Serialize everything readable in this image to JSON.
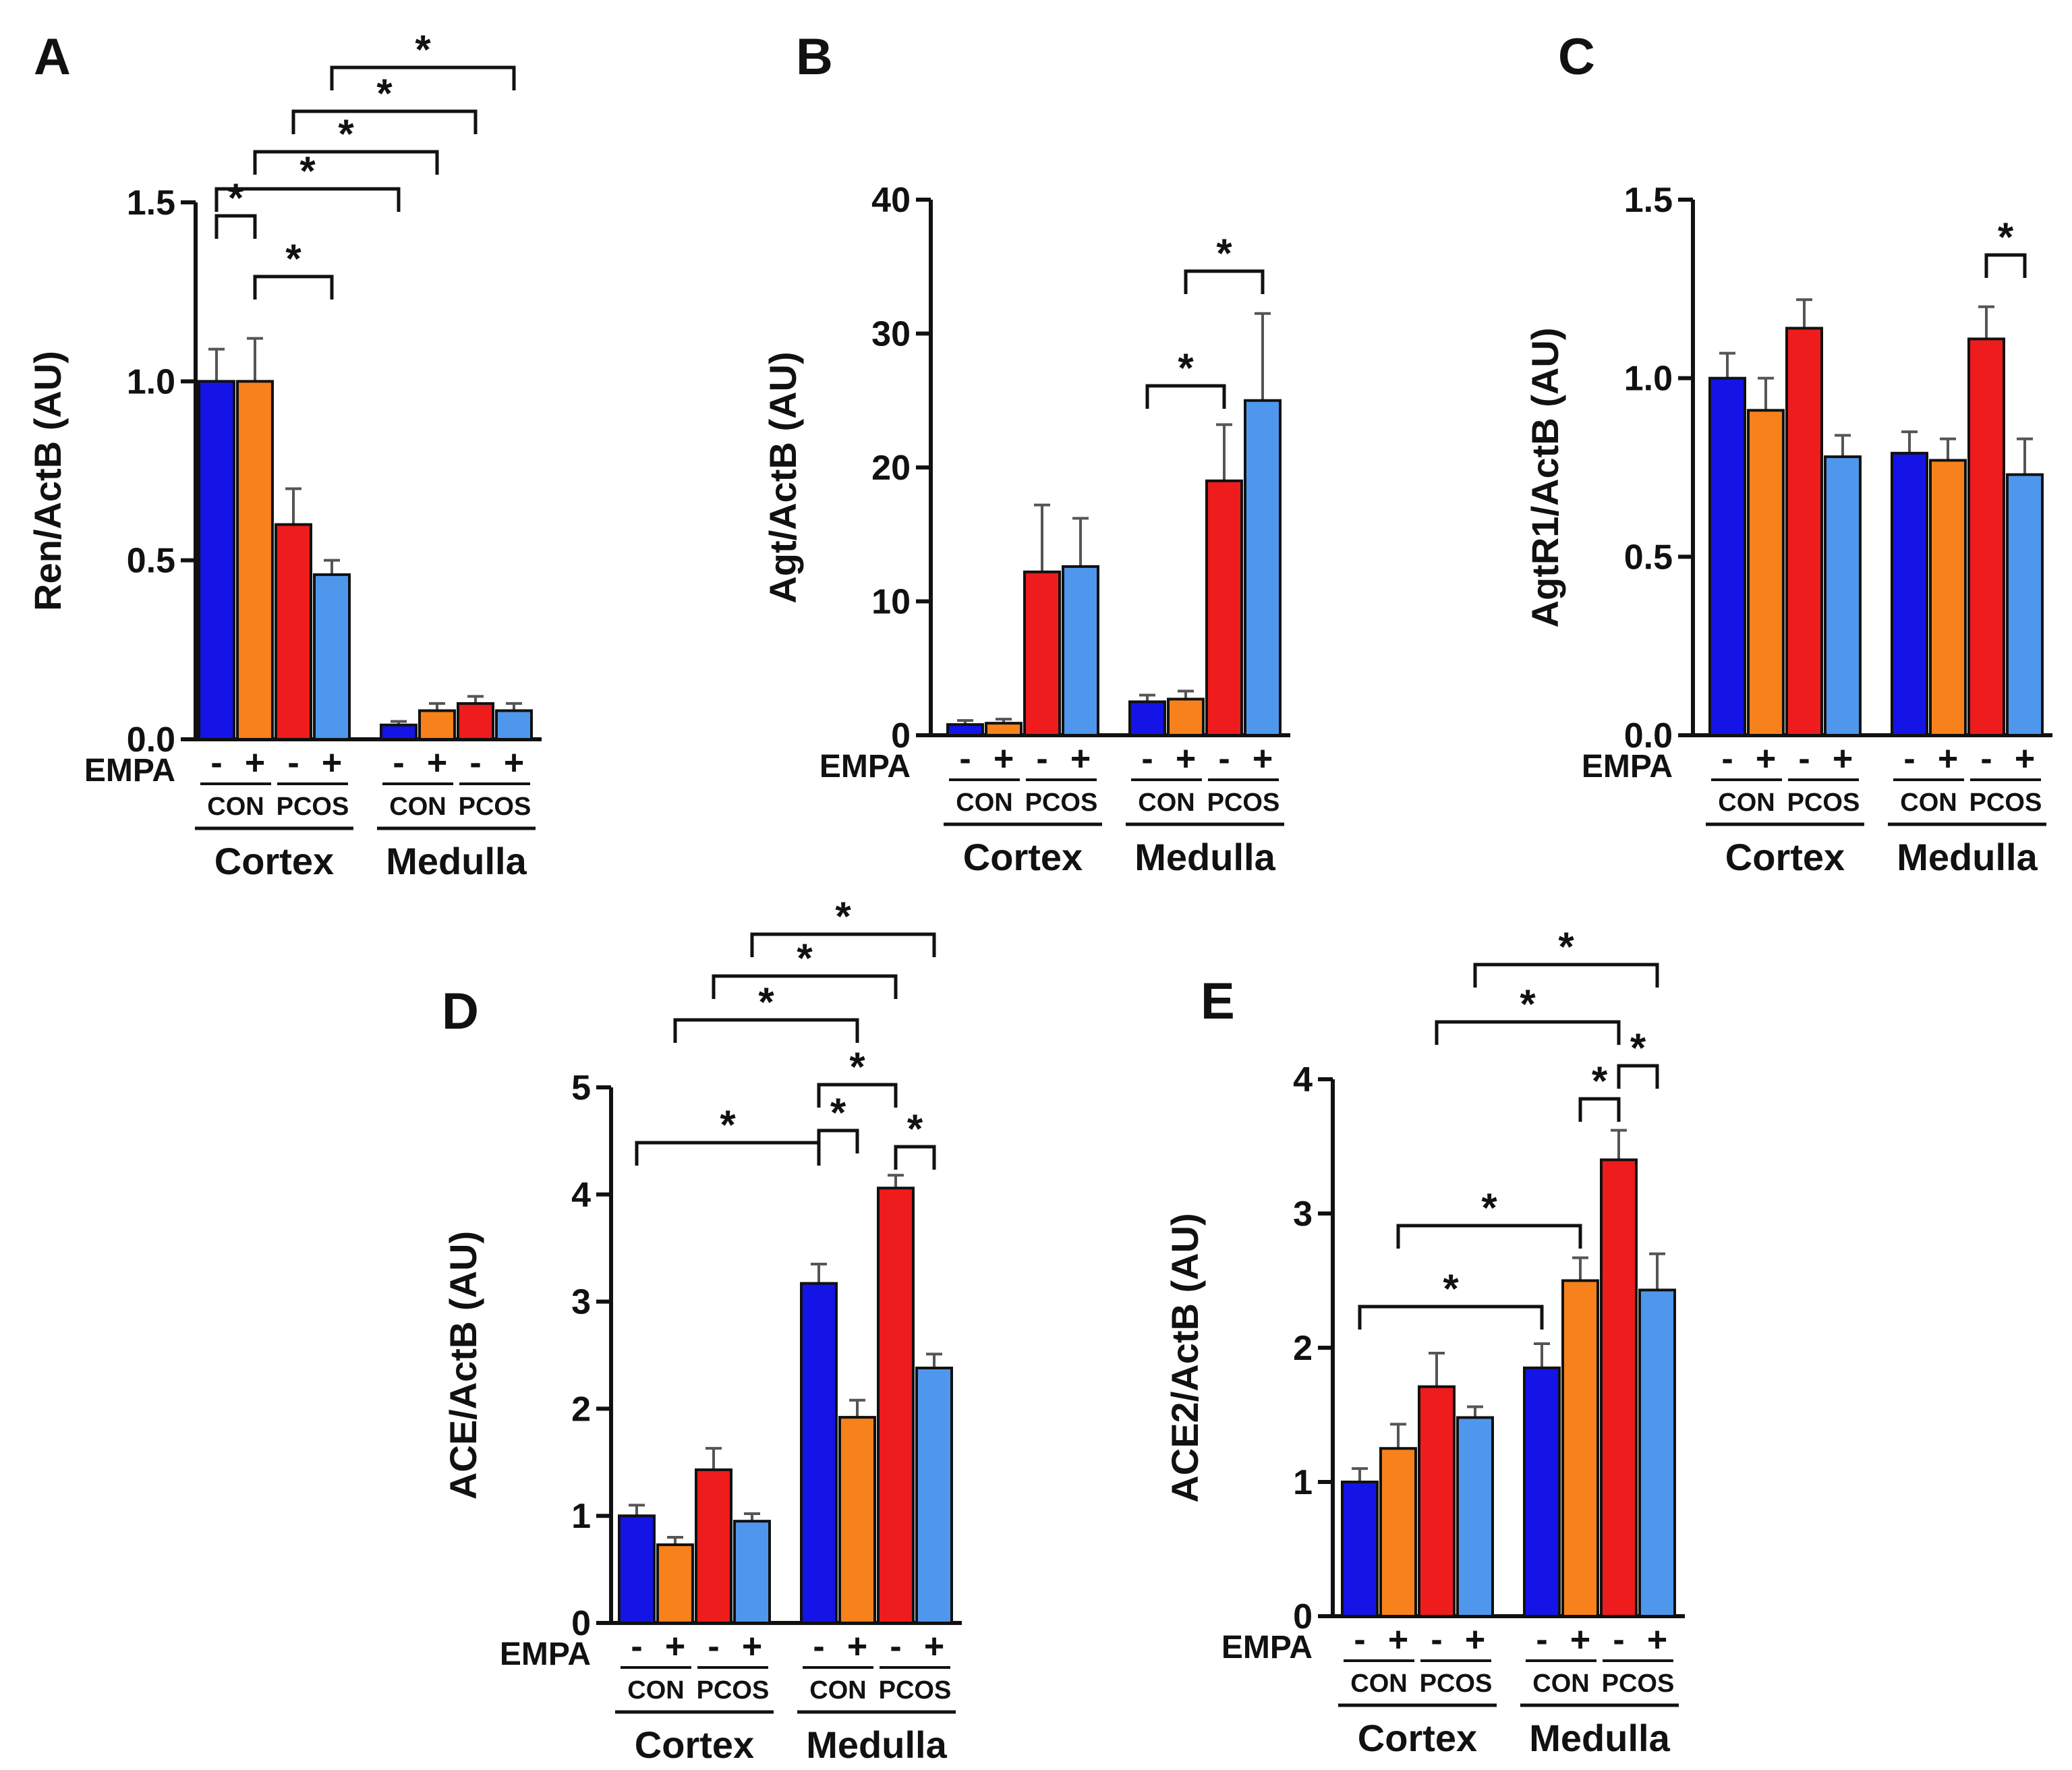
{
  "figure": {
    "panels": [
      "A",
      "B",
      "C",
      "D",
      "E"
    ],
    "colors": {
      "con_minus": "#1414e6",
      "con_plus": "#f7811b",
      "pcos_minus": "#ee1c1c",
      "pcos_plus": "#4f97ec",
      "axis": "#111111"
    },
    "group_labels": {
      "treatment": "EMPA",
      "minus": "-",
      "plus": "+",
      "con": "CON",
      "pcos": "PCOS",
      "cortex": "Cortex",
      "medulla": "Medulla"
    },
    "significance_symbol": "*"
  },
  "chart_data": [
    {
      "type": "bar",
      "panel_label": "A",
      "ylabel": "Ren/ActB (AU)",
      "ylim": [
        0,
        1.5
      ],
      "yticks": [
        "0.0",
        "0.5",
        "1.0",
        "1.5"
      ],
      "regions": [
        "Cortex",
        "Medulla"
      ],
      "groups": [
        "CON",
        "PCOS"
      ],
      "treatment": [
        "-",
        "+"
      ],
      "bar_order": [
        "CON -",
        "CON +",
        "PCOS -",
        "PCOS +"
      ],
      "values": {
        "Cortex": [
          1.0,
          1.0,
          0.6,
          0.46
        ],
        "Medulla": [
          0.04,
          0.08,
          0.1,
          0.08
        ]
      },
      "errors": {
        "Cortex": [
          0.09,
          0.12,
          0.1,
          0.04
        ],
        "Medulla": [
          0.01,
          0.02,
          0.02,
          0.02
        ]
      },
      "significance": [
        {
          "from": "Cortex CON -",
          "to": "Cortex CON +",
          "label": "*"
        },
        {
          "from": "Cortex CON +",
          "to": "Cortex PCOS +",
          "label": "*"
        },
        {
          "from": "Cortex CON -",
          "to": "Medulla CON -",
          "label": "*"
        },
        {
          "from": "Cortex CON +",
          "to": "Medulla CON +",
          "label": "*"
        },
        {
          "from": "Cortex PCOS -",
          "to": "Medulla PCOS -",
          "label": "*"
        },
        {
          "from": "Cortex PCOS +",
          "to": "Medulla PCOS +",
          "label": "*"
        }
      ]
    },
    {
      "type": "bar",
      "panel_label": "B",
      "ylabel": "Agt/ActB (AU)",
      "ylim": [
        0,
        40
      ],
      "yticks": [
        "0",
        "10",
        "20",
        "30",
        "40"
      ],
      "regions": [
        "Cortex",
        "Medulla"
      ],
      "groups": [
        "CON",
        "PCOS"
      ],
      "treatment": [
        "-",
        "+"
      ],
      "bar_order": [
        "CON -",
        "CON +",
        "PCOS -",
        "PCOS +"
      ],
      "values": {
        "Cortex": [
          0.8,
          0.9,
          12.2,
          12.6
        ],
        "Medulla": [
          2.5,
          2.7,
          19.0,
          25.0
        ]
      },
      "errors": {
        "Cortex": [
          0.3,
          0.3,
          5.0,
          3.6
        ],
        "Medulla": [
          0.5,
          0.6,
          4.2,
          6.5
        ]
      },
      "significance": [
        {
          "from": "Medulla CON -",
          "to": "Medulla PCOS -",
          "label": "*"
        },
        {
          "from": "Medulla CON +",
          "to": "Medulla PCOS +",
          "label": "*"
        }
      ]
    },
    {
      "type": "bar",
      "panel_label": "C",
      "ylabel": "AgtR1/ActB (AU)",
      "ylim": [
        0,
        1.5
      ],
      "yticks": [
        "0.0",
        "0.5",
        "1.0",
        "1.5"
      ],
      "regions": [
        "Cortex",
        "Medulla"
      ],
      "groups": [
        "CON",
        "PCOS"
      ],
      "treatment": [
        "-",
        "+"
      ],
      "bar_order": [
        "CON -",
        "CON +",
        "PCOS -",
        "PCOS +"
      ],
      "values": {
        "Cortex": [
          1.0,
          0.91,
          1.14,
          0.78
        ],
        "Medulla": [
          0.79,
          0.77,
          1.11,
          0.73
        ]
      },
      "errors": {
        "Cortex": [
          0.07,
          0.09,
          0.08,
          0.06
        ],
        "Medulla": [
          0.06,
          0.06,
          0.09,
          0.1
        ]
      },
      "significance": [
        {
          "from": "Medulla PCOS -",
          "to": "Medulla PCOS +",
          "label": "*"
        }
      ]
    },
    {
      "type": "bar",
      "panel_label": "D",
      "ylabel": "ACE/ActB (AU)",
      "ylim": [
        0,
        5
      ],
      "yticks": [
        "0",
        "1",
        "2",
        "3",
        "4",
        "5"
      ],
      "regions": [
        "Cortex",
        "Medulla"
      ],
      "groups": [
        "CON",
        "PCOS"
      ],
      "treatment": [
        "-",
        "+"
      ],
      "bar_order": [
        "CON -",
        "CON +",
        "PCOS -",
        "PCOS +"
      ],
      "values": {
        "Cortex": [
          1.0,
          0.73,
          1.43,
          0.95
        ],
        "Medulla": [
          3.17,
          1.92,
          4.06,
          2.38
        ]
      },
      "errors": {
        "Cortex": [
          0.1,
          0.07,
          0.2,
          0.07
        ],
        "Medulla": [
          0.18,
          0.16,
          0.12,
          0.13
        ]
      },
      "significance": [
        {
          "from": "Medulla CON -",
          "to": "Medulla CON +",
          "label": "*"
        },
        {
          "from": "Medulla PCOS -",
          "to": "Medulla PCOS +",
          "label": "*"
        },
        {
          "from": "Cortex CON -",
          "to": "Medulla CON -",
          "label": "*"
        },
        {
          "from": "Medulla CON -",
          "to": "Medulla PCOS -",
          "label": "*"
        },
        {
          "from": "Cortex CON +",
          "to": "Medulla CON +",
          "label": "*"
        },
        {
          "from": "Cortex PCOS -",
          "to": "Medulla PCOS -",
          "label": "*"
        },
        {
          "from": "Cortex PCOS +",
          "to": "Medulla PCOS +",
          "label": "*"
        }
      ]
    },
    {
      "type": "bar",
      "panel_label": "E",
      "ylabel": "ACE2/ActB (AU)",
      "ylim": [
        0,
        4
      ],
      "yticks": [
        "0",
        "1",
        "2",
        "3",
        "4"
      ],
      "regions": [
        "Cortex",
        "Medulla"
      ],
      "groups": [
        "CON",
        "PCOS"
      ],
      "treatment": [
        "-",
        "+"
      ],
      "bar_order": [
        "CON -",
        "CON +",
        "PCOS -",
        "PCOS +"
      ],
      "values": {
        "Cortex": [
          1.0,
          1.25,
          1.71,
          1.48
        ],
        "Medulla": [
          1.85,
          2.5,
          3.4,
          2.43
        ]
      },
      "errors": {
        "Cortex": [
          0.1,
          0.18,
          0.25,
          0.08
        ],
        "Medulla": [
          0.18,
          0.17,
          0.22,
          0.27
        ]
      },
      "significance": [
        {
          "from": "Cortex CON -",
          "to": "Medulla CON -",
          "label": "*"
        },
        {
          "from": "Cortex CON +",
          "to": "Medulla CON +",
          "label": "*"
        },
        {
          "from": "Medulla CON +",
          "to": "Medulla PCOS -",
          "label": "*"
        },
        {
          "from": "Medulla PCOS -",
          "to": "Medulla PCOS +",
          "label": "*"
        },
        {
          "from": "Cortex PCOS -",
          "to": "Medulla PCOS -",
          "label": "*"
        },
        {
          "from": "Cortex PCOS +",
          "to": "Medulla PCOS +",
          "label": "*"
        }
      ]
    }
  ]
}
